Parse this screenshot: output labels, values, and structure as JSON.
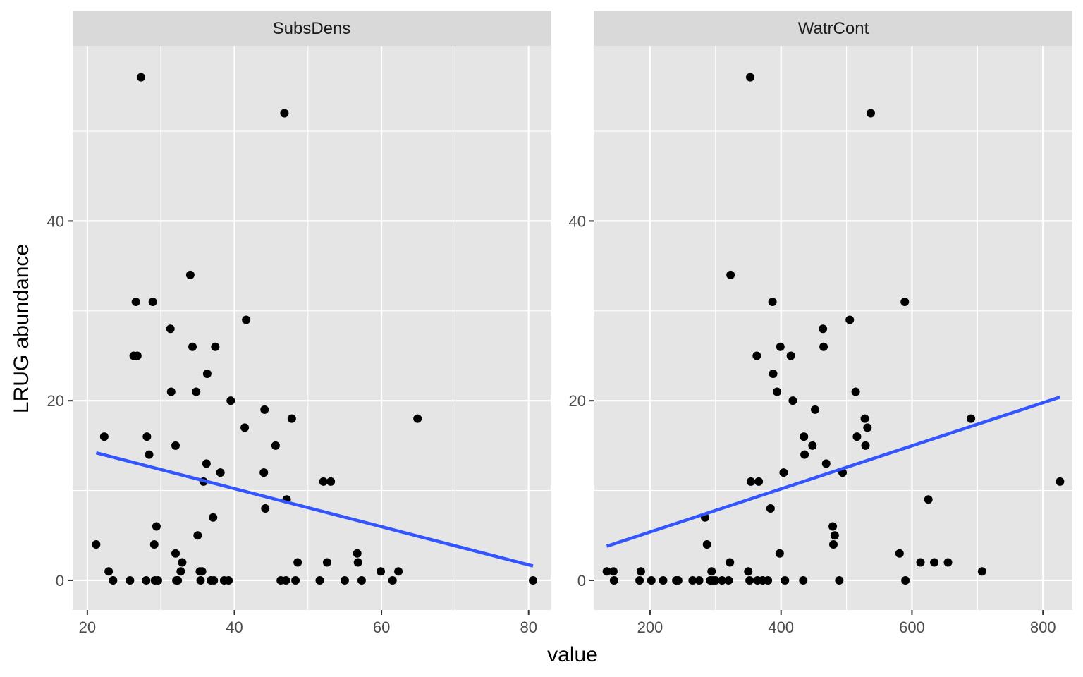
{
  "chart_data": {
    "type": "scatter",
    "facets": [
      {
        "title": "SubsDens",
        "xlim": [
          18,
          83
        ],
        "x_breaks": [
          20,
          40,
          60,
          80
        ],
        "x_tick_labels": [
          "20",
          "40",
          "60",
          "80"
        ],
        "points": [
          [
            21.2,
            4
          ],
          [
            22.3,
            16
          ],
          [
            22.9,
            1
          ],
          [
            23.5,
            0
          ],
          [
            25.8,
            0
          ],
          [
            26.3,
            25
          ],
          [
            26.6,
            31
          ],
          [
            26.8,
            25
          ],
          [
            27.3,
            56
          ],
          [
            28.0,
            0
          ],
          [
            28.1,
            16
          ],
          [
            28.4,
            14
          ],
          [
            28.9,
            31
          ],
          [
            29.1,
            4
          ],
          [
            29.2,
            0
          ],
          [
            29.4,
            6
          ],
          [
            29.6,
            0
          ],
          [
            31.3,
            28
          ],
          [
            31.4,
            21
          ],
          [
            32.0,
            15
          ],
          [
            32.0,
            3
          ],
          [
            32.1,
            0
          ],
          [
            32.3,
            0
          ],
          [
            32.7,
            1
          ],
          [
            32.9,
            2
          ],
          [
            34.0,
            34
          ],
          [
            34.3,
            26
          ],
          [
            34.8,
            21
          ],
          [
            35.0,
            5
          ],
          [
            35.3,
            1
          ],
          [
            35.4,
            0
          ],
          [
            35.6,
            1
          ],
          [
            35.8,
            11
          ],
          [
            36.2,
            13
          ],
          [
            36.3,
            23
          ],
          [
            36.8,
            0
          ],
          [
            37.1,
            7
          ],
          [
            37.2,
            0
          ],
          [
            37.4,
            26
          ],
          [
            38.1,
            12
          ],
          [
            38.6,
            0
          ],
          [
            39.2,
            0
          ],
          [
            39.5,
            20
          ],
          [
            41.4,
            17
          ],
          [
            41.6,
            29
          ],
          [
            44.0,
            12
          ],
          [
            44.1,
            19
          ],
          [
            44.2,
            8
          ],
          [
            45.6,
            15
          ],
          [
            46.3,
            0
          ],
          [
            46.8,
            52
          ],
          [
            47.0,
            0
          ],
          [
            47.1,
            9
          ],
          [
            47.8,
            18
          ],
          [
            48.3,
            0
          ],
          [
            48.6,
            2
          ],
          [
            51.6,
            0
          ],
          [
            52.1,
            11
          ],
          [
            52.6,
            2
          ],
          [
            53.1,
            11
          ],
          [
            55.0,
            0
          ],
          [
            56.7,
            3
          ],
          [
            56.8,
            2
          ],
          [
            57.3,
            0
          ],
          [
            59.9,
            1
          ],
          [
            61.5,
            0
          ],
          [
            62.3,
            1
          ],
          [
            64.9,
            18
          ],
          [
            80.6,
            0
          ]
        ],
        "fit_line": {
          "x": [
            21.2,
            80.6
          ],
          "y": [
            14.2,
            1.6
          ]
        }
      },
      {
        "title": "WatrCont",
        "xlim": [
          115,
          845
        ],
        "x_breaks": [
          200,
          400,
          600,
          800
        ],
        "x_tick_labels": [
          "200",
          "400",
          "600",
          "800"
        ],
        "points": [
          [
            134,
            1
          ],
          [
            144,
            1
          ],
          [
            145,
            0
          ],
          [
            184,
            0
          ],
          [
            186,
            1
          ],
          [
            202,
            0
          ],
          [
            220,
            0
          ],
          [
            240,
            0
          ],
          [
            243,
            0
          ],
          [
            265,
            0
          ],
          [
            275,
            0
          ],
          [
            284,
            7
          ],
          [
            287,
            4
          ],
          [
            292,
            0
          ],
          [
            294,
            1
          ],
          [
            296,
            0
          ],
          [
            300,
            0
          ],
          [
            310,
            0
          ],
          [
            320,
            0
          ],
          [
            322,
            2
          ],
          [
            323,
            34
          ],
          [
            350,
            1
          ],
          [
            352,
            0
          ],
          [
            353,
            56
          ],
          [
            354,
            11
          ],
          [
            363,
            25
          ],
          [
            364,
            0
          ],
          [
            366,
            11
          ],
          [
            372,
            0
          ],
          [
            380,
            0
          ],
          [
            384,
            8
          ],
          [
            387,
            31
          ],
          [
            388,
            23
          ],
          [
            394,
            21
          ],
          [
            398,
            3
          ],
          [
            399,
            26
          ],
          [
            404,
            12
          ],
          [
            406,
            0
          ],
          [
            415,
            25
          ],
          [
            418,
            20
          ],
          [
            434,
            0
          ],
          [
            435,
            16
          ],
          [
            436,
            14
          ],
          [
            448,
            15
          ],
          [
            452,
            19
          ],
          [
            464,
            28
          ],
          [
            465,
            26
          ],
          [
            469,
            13
          ],
          [
            479,
            6
          ],
          [
            480,
            4
          ],
          [
            482,
            5
          ],
          [
            489,
            0
          ],
          [
            494,
            12
          ],
          [
            505,
            29
          ],
          [
            514,
            21
          ],
          [
            516,
            16
          ],
          [
            528,
            18
          ],
          [
            529,
            15
          ],
          [
            532,
            17
          ],
          [
            537,
            52
          ],
          [
            581,
            3
          ],
          [
            589,
            31
          ],
          [
            590,
            0
          ],
          [
            613,
            2
          ],
          [
            625,
            9
          ],
          [
            634,
            2
          ],
          [
            655,
            2
          ],
          [
            690,
            18
          ],
          [
            707,
            1
          ],
          [
            826,
            11
          ]
        ],
        "fit_line": {
          "x": [
            134,
            826
          ],
          "y": [
            3.8,
            20.4
          ]
        }
      }
    ],
    "ylim": [
      -3.3,
      59.5
    ],
    "y_breaks": [
      0,
      20,
      40
    ],
    "y_tick_labels": [
      "0",
      "20",
      "40"
    ],
    "ylabel": "LRUG abundance",
    "xlabel": "value",
    "grid": true,
    "colors": {
      "panel_bg": "#e5e5e5",
      "grid_major": "#ffffff",
      "strip_bg": "#d9d9d9",
      "points": "#000000",
      "fit_line": "#3355ff"
    }
  }
}
